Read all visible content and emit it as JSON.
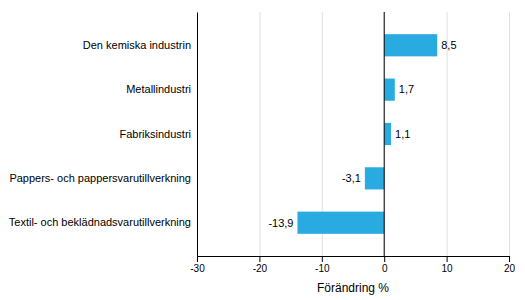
{
  "chart_data": {
    "type": "bar",
    "orientation": "horizontal",
    "categories": [
      "Den kemiska industrin",
      "Metallindustri",
      "Fabriksindustri",
      "Pappers- och pappersvarutillverkning",
      "Textil- och beklädnadsvarutillverkning"
    ],
    "values": [
      8.5,
      1.7,
      1.1,
      -3.1,
      -13.9
    ],
    "value_labels": [
      "8,5",
      "1,7",
      "1,1",
      "-3,1",
      "-13,9"
    ],
    "color": "#29ABE2",
    "xlim": [
      -30,
      20
    ],
    "xticks": [
      -30,
      -20,
      -10,
      0,
      10,
      20
    ],
    "xlabel": "Förändring %",
    "grid": true
  }
}
